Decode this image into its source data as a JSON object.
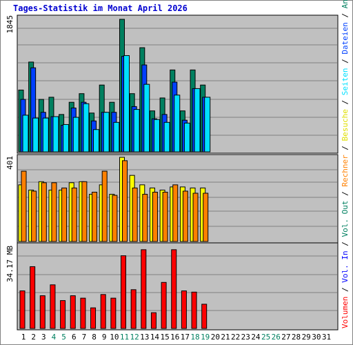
{
  "title": "Tages-Statistik im Monat April 2026",
  "colors": {
    "anfragen": "#008060",
    "dateien": "#0040ff",
    "seiten": "#00e0ff",
    "besuche": "#ffff00",
    "rechner": "#ff8000",
    "volumen": "#ff0000",
    "weekend_day_label": "#008060",
    "plot_bg": "#c0c0c0"
  },
  "right_legend": [
    {
      "text": "Volumen",
      "color": "#ff0000"
    },
    {
      "text": " / ",
      "color": "#000000"
    },
    {
      "text": "Vol. In",
      "color": "#0000ff"
    },
    {
      "text": " / ",
      "color": "#000000"
    },
    {
      "text": "Vol. Out",
      "color": "#008060"
    },
    {
      "text": " / ",
      "color": "#000000"
    },
    {
      "text": "Rechner",
      "color": "#ff8000"
    },
    {
      "text": " / ",
      "color": "#000000"
    },
    {
      "text": "Besuche",
      "color": "#e0e000"
    },
    {
      "text": " / ",
      "color": "#000000"
    },
    {
      "text": "Seiten",
      "color": "#00e0ff"
    },
    {
      "text": " / ",
      "color": "#000000"
    },
    {
      "text": "Dateien",
      "color": "#0040ff"
    },
    {
      "text": " / ",
      "color": "#000000"
    },
    {
      "text": "Anfragen",
      "color": "#008060"
    }
  ],
  "chart_data": [
    {
      "type": "bar",
      "panel": "hits",
      "ymax_label": "1845",
      "ymax": 1845,
      "categories": [
        "1",
        "2",
        "3",
        "4",
        "5",
        "6",
        "7",
        "8",
        "9",
        "10",
        "11",
        "12",
        "13",
        "14",
        "15",
        "16",
        "17",
        "18",
        "19",
        "20",
        "21",
        "22",
        "23",
        "24",
        "25",
        "26",
        "27",
        "28",
        "29",
        "30",
        "31"
      ],
      "weekend_days": [
        "4",
        "5",
        "11",
        "12",
        "18",
        "19",
        "25",
        "26"
      ],
      "series": [
        {
          "name": "Anfragen",
          "key": "anfragen",
          "values": [
            860,
            1250,
            730,
            760,
            520,
            690,
            810,
            540,
            930,
            690,
            1845,
            810,
            1450,
            570,
            750,
            1140,
            570,
            1140,
            930,
            0,
            0,
            0,
            0,
            0,
            0,
            0,
            0,
            0,
            0,
            0,
            0
          ]
        },
        {
          "name": "Dateien",
          "key": "dateien",
          "values": [
            730,
            1170,
            550,
            490,
            370,
            610,
            690,
            430,
            550,
            550,
            1330,
            630,
            1210,
            460,
            520,
            970,
            440,
            880,
            760,
            0,
            0,
            0,
            0,
            0,
            0,
            0,
            0,
            0,
            0,
            0,
            0
          ]
        },
        {
          "name": "Seiten",
          "key": "seiten",
          "values": [
            510,
            470,
            470,
            490,
            380,
            480,
            670,
            310,
            550,
            410,
            1340,
            590,
            940,
            450,
            410,
            790,
            400,
            880,
            760,
            0,
            0,
            0,
            0,
            0,
            0,
            0,
            0,
            0,
            0,
            0,
            0
          ]
        }
      ]
    },
    {
      "type": "bar",
      "panel": "visits",
      "ymax_label": "401",
      "ymax": 401,
      "categories": [
        "1",
        "2",
        "3",
        "4",
        "5",
        "6",
        "7",
        "8",
        "9",
        "10",
        "11",
        "12",
        "13",
        "14",
        "15",
        "16",
        "17",
        "18",
        "19",
        "20",
        "21",
        "22",
        "23",
        "24",
        "25",
        "26",
        "27",
        "28",
        "29",
        "30",
        "31"
      ],
      "series": [
        {
          "name": "Besuche",
          "key": "besuche",
          "values": [
            270,
            245,
            285,
            245,
            245,
            280,
            285,
            225,
            270,
            225,
            401,
            315,
            270,
            255,
            245,
            260,
            260,
            255,
            255,
            0,
            0,
            0,
            0,
            0,
            0,
            0,
            0,
            0,
            0,
            0,
            0
          ]
        },
        {
          "name": "Rechner",
          "key": "rechner",
          "values": [
            335,
            240,
            280,
            280,
            255,
            255,
            285,
            235,
            335,
            220,
            385,
            255,
            225,
            235,
            235,
            270,
            240,
            230,
            230,
            0,
            0,
            0,
            0,
            0,
            0,
            0,
            0,
            0,
            0,
            0,
            0
          ]
        }
      ]
    },
    {
      "type": "bar",
      "panel": "volume",
      "ymax_label": "34.17 MB",
      "ymax": 34.17,
      "categories": [
        "1",
        "2",
        "3",
        "4",
        "5",
        "6",
        "7",
        "8",
        "9",
        "10",
        "11",
        "12",
        "13",
        "14",
        "15",
        "16",
        "17",
        "18",
        "19",
        "20",
        "21",
        "22",
        "23",
        "24",
        "25",
        "26",
        "27",
        "28",
        "29",
        "30",
        "31"
      ],
      "series": [
        {
          "name": "Volumen",
          "key": "volumen",
          "values": [
            15.5,
            25.5,
            13.5,
            18.0,
            11.5,
            13.5,
            12.5,
            8.5,
            14.0,
            12.5,
            30.0,
            16.0,
            32.5,
            6.5,
            19.0,
            32.5,
            15.5,
            15.0,
            10.0,
            0,
            0,
            0,
            0,
            0,
            0,
            0,
            0,
            0,
            0,
            0,
            0
          ]
        }
      ]
    }
  ]
}
